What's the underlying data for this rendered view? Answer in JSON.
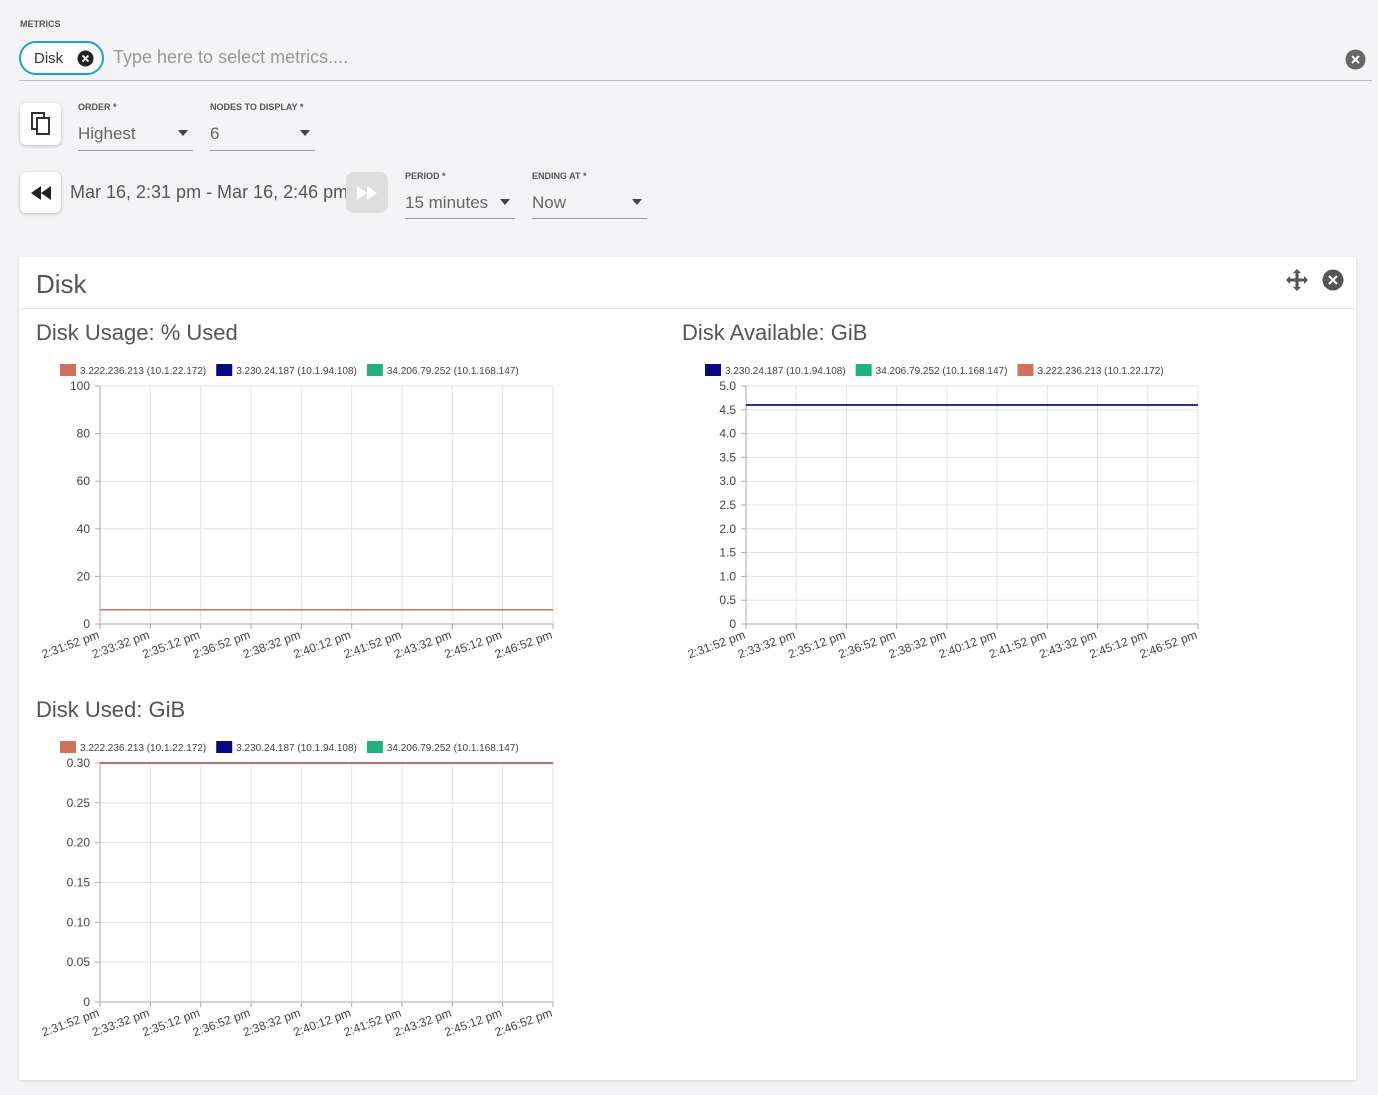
{
  "ui": {
    "metrics_label": "METRICS",
    "chip": "Disk",
    "placeholder": "Type here to select metrics....",
    "order_label": "ORDER *",
    "order_value": "Highest",
    "nodes_label": "NODES TO DISPLAY *",
    "nodes_value": "6",
    "date_range": "Mar 16, 2:31 pm - Mar 16, 2:46 pm",
    "period_label": "PERIOD *",
    "period_value": "15 minutes",
    "ending_label": "ENDING AT *",
    "ending_value": "Now",
    "panel_title": "Disk"
  },
  "chart_data": [
    {
      "type": "line",
      "title": "Disk Usage: % Used",
      "categories": [
        "2:31:52 pm",
        "2:33:32 pm",
        "2:35:12 pm",
        "2:36:52 pm",
        "2:38:32 pm",
        "2:40:12 pm",
        "2:41:52 pm",
        "2:43:32 pm",
        "2:45:12 pm",
        "2:46:52 pm"
      ],
      "series": [
        {
          "name": "3.222.236.213 (10.1.22.172)",
          "color": "#cd735b",
          "values": [
            6,
            6,
            6,
            6,
            6,
            6,
            6,
            6,
            6,
            6
          ]
        },
        {
          "name": "3.230.24.187 (10.1.94.108)",
          "color": "#0a0a80",
          "values": [
            6,
            6,
            6,
            6,
            6,
            6,
            6,
            6,
            6,
            6
          ]
        },
        {
          "name": "34.206.79.252 (10.1.168.147)",
          "color": "#22b07e",
          "values": [
            6,
            6,
            6,
            6,
            6,
            6,
            6,
            6,
            6,
            6
          ]
        }
      ],
      "ylim": [
        0,
        100
      ],
      "yticks": [
        0,
        20,
        40,
        60,
        80,
        100
      ],
      "grid": true
    },
    {
      "type": "line",
      "title": "Disk Available: GiB",
      "categories": [
        "2:31:52 pm",
        "2:33:32 pm",
        "2:35:12 pm",
        "2:36:52 pm",
        "2:38:32 pm",
        "2:40:12 pm",
        "2:41:52 pm",
        "2:43:32 pm",
        "2:45:12 pm",
        "2:46:52 pm"
      ],
      "series": [
        {
          "name": "3.230.24.187 (10.1.94.108)",
          "color": "#0a0a80",
          "values": [
            4.6,
            4.6,
            4.6,
            4.6,
            4.6,
            4.6,
            4.6,
            4.6,
            4.6,
            4.6
          ]
        },
        {
          "name": "34.206.79.252 (10.1.168.147)",
          "color": "#22b07e",
          "values": [
            4.6,
            4.6,
            4.6,
            4.6,
            4.6,
            4.6,
            4.6,
            4.6,
            4.6,
            4.6
          ]
        },
        {
          "name": "3.222.236.213 (10.1.22.172)",
          "color": "#cd735b",
          "values": [
            4.6,
            4.6,
            4.6,
            4.6,
            4.6,
            4.6,
            4.6,
            4.6,
            4.6,
            4.6
          ]
        }
      ],
      "ylim": [
        0,
        5
      ],
      "yticks": [
        0,
        0.5,
        {
          "value": 1,
          "label": "1.0"
        },
        1.5,
        {
          "value": 2,
          "label": "2.0"
        },
        2.5,
        {
          "value": 3,
          "label": "3.0"
        },
        3.5,
        {
          "value": 4,
          "label": "4.0"
        },
        4.5,
        {
          "value": 5,
          "label": "5.0"
        }
      ],
      "grid": true
    },
    {
      "type": "line",
      "title": "Disk Used: GiB",
      "categories": [
        "2:31:52 pm",
        "2:33:32 pm",
        "2:35:12 pm",
        "2:36:52 pm",
        "2:38:32 pm",
        "2:40:12 pm",
        "2:41:52 pm",
        "2:43:32 pm",
        "2:45:12 pm",
        "2:46:52 pm"
      ],
      "series": [
        {
          "name": "3.222.236.213 (10.1.22.172)",
          "color": "#cd735b",
          "values": [
            0.3,
            0.3,
            0.3,
            0.3,
            0.3,
            0.3,
            0.3,
            0.3,
            0.3,
            0.3
          ]
        },
        {
          "name": "3.230.24.187 (10.1.94.108)",
          "color": "#0a0a80",
          "values": [
            0.3,
            0.3,
            0.3,
            0.3,
            0.3,
            0.3,
            0.3,
            0.3,
            0.3,
            0.3
          ]
        },
        {
          "name": "34.206.79.252 (10.1.168.147)",
          "color": "#22b07e",
          "values": [
            0.3,
            0.3,
            0.3,
            0.3,
            0.3,
            0.3,
            0.3,
            0.3,
            0.3,
            0.3
          ]
        }
      ],
      "ylim": [
        0,
        0.3
      ],
      "yticks": [
        0,
        0.05,
        {
          "value": 0.1,
          "label": "0.10"
        },
        0.15,
        {
          "value": 0.2,
          "label": "0.20"
        },
        0.25,
        {
          "value": 0.3,
          "label": "0.30"
        }
      ],
      "grid": true
    }
  ]
}
